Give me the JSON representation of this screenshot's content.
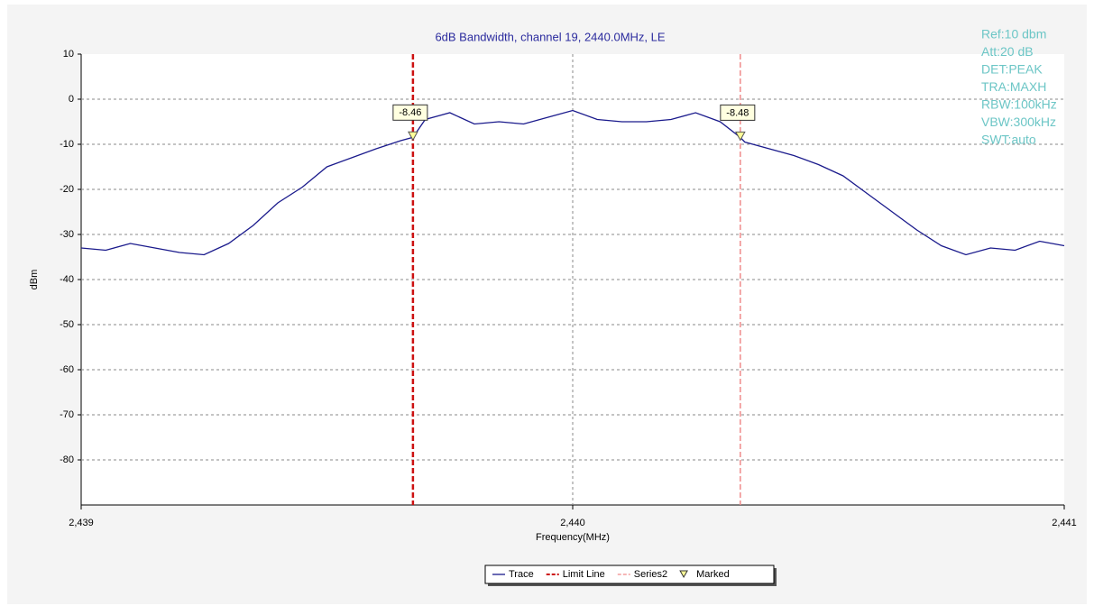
{
  "chart_data": {
    "type": "line",
    "title": "6dB Bandwidth,  channel 19, 2440.0MHz, LE",
    "xlabel": "Frequency(MHz)",
    "ylabel": "dBm",
    "xlim": [
      2439,
      2441
    ],
    "ylim": [
      -90,
      10
    ],
    "xticks": [
      {
        "value": 2439,
        "label": "2,439"
      },
      {
        "value": 2440,
        "label": "2,440"
      },
      {
        "value": 2441,
        "label": "2,441"
      }
    ],
    "yticks": [
      10,
      0,
      -10,
      -20,
      -30,
      -40,
      -50,
      -60,
      -70,
      -80
    ],
    "grid": true,
    "legend": "bottom",
    "annotations": [
      "Ref:10 dbm",
      "Att:20 dB",
      "DET:PEAK",
      "TRA:MAXH",
      "RBW:100kHz",
      "VBW:300kHz",
      "SWT:auto"
    ],
    "series": [
      {
        "name": "Trace",
        "color": "#1a1a8c",
        "x": [
          2439.0,
          2439.05,
          2439.1,
          2439.15,
          2439.2,
          2439.25,
          2439.3,
          2439.35,
          2439.4,
          2439.45,
          2439.5,
          2439.55,
          2439.6,
          2439.65,
          2439.675,
          2439.7,
          2439.75,
          2439.8,
          2439.85,
          2439.9,
          2439.95,
          2440.0,
          2440.05,
          2440.1,
          2440.15,
          2440.2,
          2440.25,
          2440.3,
          2440.341,
          2440.35,
          2440.4,
          2440.45,
          2440.5,
          2440.55,
          2440.6,
          2440.65,
          2440.7,
          2440.75,
          2440.8,
          2440.85,
          2440.9,
          2440.95,
          2441.0
        ],
        "values": [
          -33,
          -33.5,
          -32,
          -33,
          -34,
          -34.5,
          -32,
          -28,
          -23,
          -19.5,
          -15,
          -13,
          -11,
          -9.2,
          -8.46,
          -4.5,
          -3,
          -5.5,
          -5,
          -5.5,
          -4,
          -2.5,
          -4.5,
          -5,
          -5,
          -4.5,
          -3,
          -5,
          -8.48,
          -9.5,
          -11,
          -12.5,
          -14.5,
          -17,
          -21,
          -25,
          -29,
          -32.5,
          -34.5,
          -33,
          -33.5,
          -31.5,
          -32.5
        ]
      },
      {
        "name": "Limit Line",
        "color": "#cc1111",
        "x": 2439.675
      },
      {
        "name": "Series2",
        "color": "#f08a8a",
        "x": 2440.341
      },
      {
        "name": "Marked",
        "color": "#ffff99",
        "x": [
          2439.675,
          2440.341
        ],
        "values": [
          -8.46,
          -8.48
        ]
      }
    ]
  }
}
